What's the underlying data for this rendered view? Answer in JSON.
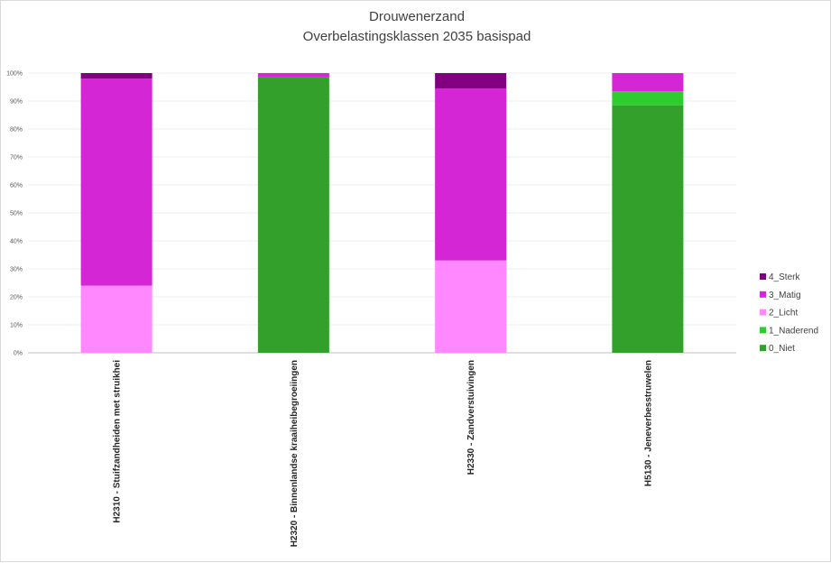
{
  "chart_data": {
    "type": "bar",
    "stacked": true,
    "normalized_percent": true,
    "title": "Drouwenerzand",
    "subtitle": "Overbelastingsklassen 2035 basispad",
    "xlabel": "",
    "ylabel": "",
    "ylim": [
      0,
      100
    ],
    "y_ticks": [
      "0%",
      "10%",
      "20%",
      "30%",
      "40%",
      "50%",
      "60%",
      "70%",
      "80%",
      "90%",
      "100%"
    ],
    "grid": true,
    "legend_position": "right",
    "categories": [
      "H2310 - Stuifzandheiden met struikhei",
      "H2320 - Binnenlandse kraaiheibegroeiingen",
      "H2330 - Zandverstuivingen",
      "H5130 - Jeneverbesstruwelen"
    ],
    "series": [
      {
        "name": "0_Niet",
        "color": "#33a02c",
        "values": [
          0,
          98.5,
          0,
          88.5
        ]
      },
      {
        "name": "1_Naderend",
        "color": "#2ecc2e",
        "values": [
          0,
          0,
          0,
          5
        ]
      },
      {
        "name": "2_Licht",
        "color": "#ff88ff",
        "values": [
          24,
          0,
          33,
          0
        ]
      },
      {
        "name": "3_Matig",
        "color": "#d426d4",
        "values": [
          74,
          1.5,
          61.5,
          6.5
        ]
      },
      {
        "name": "4_Sterk",
        "color": "#800080",
        "values": [
          2,
          0,
          5.5,
          0
        ]
      }
    ]
  }
}
